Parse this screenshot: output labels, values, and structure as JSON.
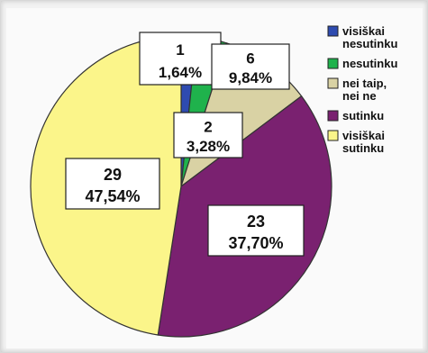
{
  "chart_data": {
    "type": "pie",
    "categories": [
      "visiškai nesutinku",
      "nesutinku",
      "nei taip, nei ne",
      "sutinku",
      "visiškai sutinku"
    ],
    "values": [
      1,
      2,
      6,
      23,
      29
    ],
    "percent_labels": [
      "1,64%",
      "3,28%",
      "9,84%",
      "37,70%",
      "47,54%"
    ],
    "colors": [
      "#2e4bb0",
      "#1fb24c",
      "#d9d2a4",
      "#7a2170",
      "#fbf58a"
    ],
    "legend": {
      "placement": "right",
      "entries": [
        [
          "visiškai",
          "nesutinku"
        ],
        [
          "nesutinku"
        ],
        [
          "nei taip,",
          "nei ne"
        ],
        [
          "sutinku"
        ],
        [
          "visiškai",
          "sutinku"
        ]
      ]
    }
  }
}
